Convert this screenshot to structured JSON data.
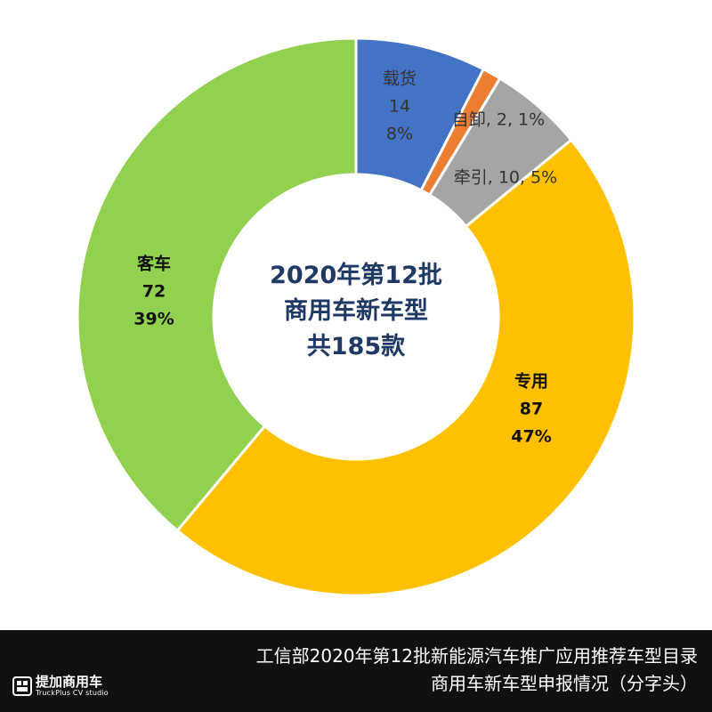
{
  "chart_data": {
    "type": "pie",
    "style": "donut",
    "total": 185,
    "center_title": [
      "2020年第12批",
      "商用车新车型",
      "共185款"
    ],
    "series": [
      {
        "name": "载货",
        "value": 14,
        "percent": "8%",
        "color": "#4472c4",
        "label_style": "stacked",
        "label_color": "#333333",
        "label_bold": false
      },
      {
        "name": "自卸",
        "value": 2,
        "percent": "1%",
        "color": "#ed7d31",
        "label_style": "inline",
        "label_color": "#333333",
        "label_bold": false
      },
      {
        "name": "牵引",
        "value": 10,
        "percent": "5%",
        "color": "#a5a5a5",
        "label_style": "inline",
        "label_color": "#333333",
        "label_bold": false
      },
      {
        "name": "专用",
        "value": 87,
        "percent": "47%",
        "color": "#ffc000",
        "label_style": "stacked",
        "label_color": "#111111",
        "label_bold": true
      },
      {
        "name": "客车",
        "value": 72,
        "percent": "39%",
        "color": "#92d050",
        "label_style": "stacked",
        "label_color": "#111111",
        "label_bold": true
      }
    ],
    "start_angle": "12 o'clock",
    "direction": "clockwise"
  },
  "footer": {
    "caption_line1": "工信部2020年第12批新能源汽车推广应用推荐车型目录",
    "caption_line2": "商用车新车型申报情况（分字头）",
    "logo_cn": "提加商用车",
    "logo_en": "TruckPlus CV studio"
  },
  "colors": {
    "footer_bg": "#111111",
    "center_text": "#1f3864"
  }
}
